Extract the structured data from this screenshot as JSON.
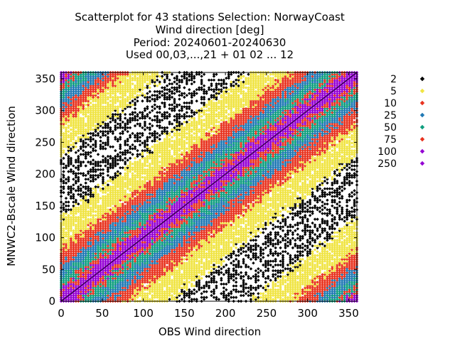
{
  "chart_data": {
    "type": "scatter",
    "title": [
      "Scatterplot for   43 stations Selection: NorwayCoast",
      "Wind direction [deg]",
      "Period: 20240601-20240630",
      "Used 00,03,...,21 + 01 02 ... 12"
    ],
    "xlabel": "OBS Wind direction",
    "ylabel": "MNWC2-Bscale Wind direction",
    "xlim": [
      0,
      360
    ],
    "ylim": [
      0,
      360
    ],
    "x_ticks": [
      "0",
      "50",
      "100",
      "150",
      "200",
      "250",
      "300",
      "350"
    ],
    "y_ticks": [
      "0",
      "50",
      "100",
      "150",
      "200",
      "250",
      "300",
      "350"
    ],
    "diagonal_line": true,
    "grid": false,
    "legend_position": "right",
    "legend": [
      {
        "label": "2",
        "color": "#000000"
      },
      {
        "label": "5",
        "color": "#f0e442"
      },
      {
        "label": "10",
        "color": "#e8321e"
      },
      {
        "label": "25",
        "color": "#1f78b4"
      },
      {
        "label": "50",
        "color": "#0e9e7e"
      },
      {
        "label": "75",
        "color": "#e8321e"
      },
      {
        "label": "100",
        "color": "#9400d3"
      },
      {
        "label": "250",
        "color": "#9400d3"
      }
    ],
    "density_bands": [
      {
        "count_level": "250",
        "max_offset_deg": 6
      },
      {
        "count_level": "100",
        "max_offset_deg": 14
      },
      {
        "count_level": "75",
        "max_offset_deg": 24
      },
      {
        "count_level": "50",
        "max_offset_deg": 38
      },
      {
        "count_level": "25",
        "max_offset_deg": 55
      },
      {
        "count_level": "10",
        "max_offset_deg": 80
      },
      {
        "count_level": "5",
        "max_offset_deg": 130
      },
      {
        "count_level": "2",
        "max_offset_deg": 180
      }
    ]
  }
}
